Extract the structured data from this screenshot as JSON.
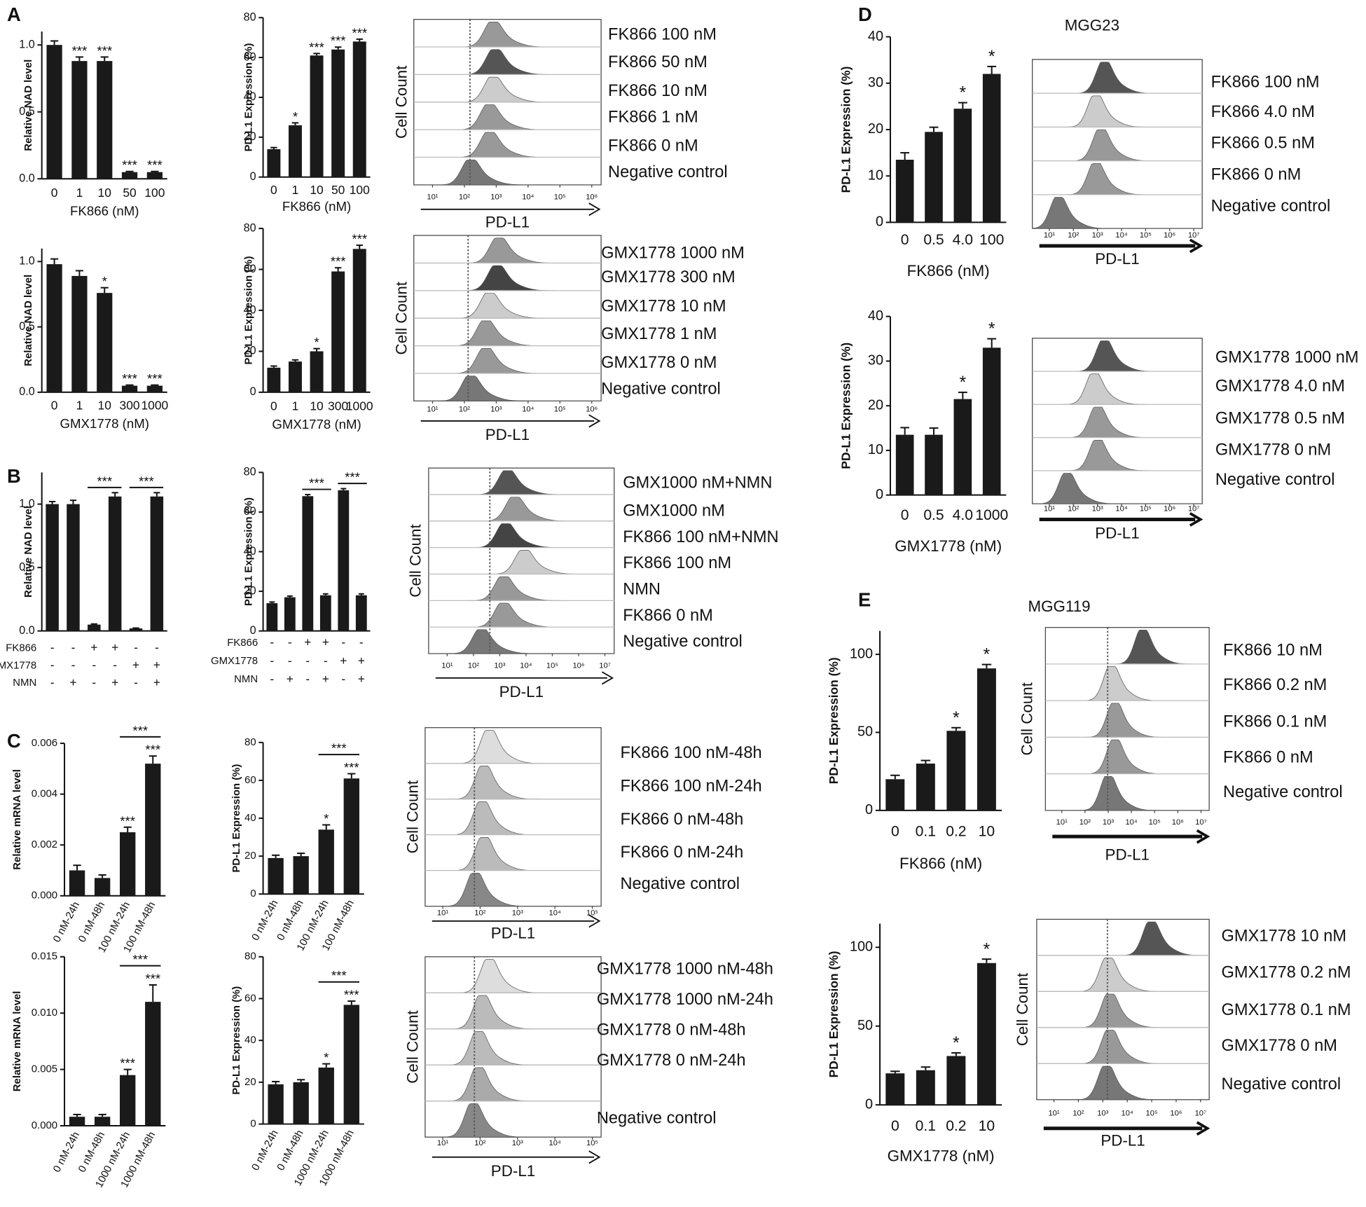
{
  "panel_labels": [
    "A",
    "B",
    "C",
    "D",
    "E"
  ],
  "cell_lines": [
    "MGG23",
    "MGG119"
  ],
  "chart_data": [
    {
      "type": "bar",
      "ylabel": "Relative NAD level",
      "xlabel": "FK866 (nM)",
      "categories": [
        "0",
        "1",
        "10",
        "50",
        "100"
      ],
      "values": [
        1.0,
        0.88,
        0.88,
        0.05,
        0.05
      ],
      "errors": [
        0.03,
        0.03,
        0.03,
        0.005,
        0.005
      ],
      "stars": [
        null,
        "***",
        "***",
        "***",
        "***"
      ],
      "ylim": [
        0,
        1.1
      ],
      "yticks": [
        {
          "value": 0,
          "label": "0.0"
        },
        0.5,
        {
          "value": 1,
          "label": "1.0"
        }
      ],
      "color": "#1a1a1a"
    },
    {
      "type": "bar",
      "ylabel": "PD-L1 Expression (%)",
      "xlabel": "FK866 (nM)",
      "categories": [
        "0",
        "1",
        "10",
        "50",
        "100"
      ],
      "values": [
        14,
        26,
        61,
        64,
        68
      ],
      "errors": [
        0.8,
        1.2,
        1,
        1.2,
        1.2
      ],
      "stars": [
        null,
        "*",
        "***",
        "***",
        "***"
      ],
      "ylim": [
        0,
        80
      ],
      "yticks": [
        0,
        20,
        40,
        60,
        80
      ],
      "color": "#1a1a1a"
    },
    {
      "type": "bar",
      "ylabel": "Relative NAD level",
      "xlabel": "GMX1778 (nM)",
      "categories": [
        "0",
        "1",
        "10",
        "300",
        "1000"
      ],
      "values": [
        0.98,
        0.89,
        0.76,
        0.05,
        0.05
      ],
      "errors": [
        0.04,
        0.04,
        0.04,
        0.005,
        0.005
      ],
      "stars": [
        null,
        null,
        "*",
        "***",
        "***"
      ],
      "ylim": [
        0,
        1.1
      ],
      "yticks": [
        {
          "value": 0,
          "label": "0.0"
        },
        0.5,
        {
          "value": 1,
          "label": "1.0"
        }
      ],
      "color": "#1a1a1a"
    },
    {
      "type": "bar",
      "ylabel": "PD-L1 Expression (%)",
      "xlabel": "GMX1778 (nM)",
      "categories": [
        "0",
        "1",
        "10",
        "300",
        "1000"
      ],
      "values": [
        12,
        15,
        20,
        59,
        70
      ],
      "errors": [
        0.8,
        0.8,
        1.3,
        1.8,
        1.8
      ],
      "stars": [
        null,
        null,
        "*",
        "***",
        "***"
      ],
      "ylim": [
        0,
        80
      ],
      "yticks": [
        0,
        20,
        40,
        60,
        80
      ],
      "color": "#1a1a1a"
    },
    {
      "type": "bar",
      "ylabel": "Relative NAD level",
      "values": [
        1.0,
        1.0,
        0.05,
        1.06,
        0.02,
        1.06
      ],
      "errors": [
        0.02,
        0.03,
        0.005,
        0.03,
        0.003,
        0.03
      ],
      "conditions": [
        {
          "name": "FK866",
          "signs": [
            "-",
            "-",
            "+",
            "+",
            "-",
            "-"
          ]
        },
        {
          "name": "GMX1778",
          "signs": [
            "-",
            "-",
            "-",
            "-",
            "+",
            "+"
          ]
        },
        {
          "name": "NMN",
          "signs": [
            "-",
            "+",
            "-",
            "+",
            "-",
            "+"
          ]
        }
      ],
      "brackets": [
        {
          "bars": [
            2,
            3
          ],
          "label": "***"
        },
        {
          "bars": [
            4,
            5
          ],
          "label": "***"
        }
      ],
      "ylim": [
        0,
        1.25
      ],
      "yticks": [
        {
          "value": 0,
          "label": "0.0"
        },
        0.5,
        {
          "value": 1,
          "label": "1.0"
        }
      ],
      "color": "#1a1a1a"
    },
    {
      "type": "bar",
      "ylabel": "PD-L1 Expression (%)",
      "values": [
        14,
        17,
        68,
        18,
        71,
        18
      ],
      "errors": [
        0.6,
        0.6,
        0.8,
        0.7,
        0.8,
        0.7
      ],
      "conditions": [
        {
          "name": "FK866",
          "signs": [
            "-",
            "-",
            "+",
            "+",
            "-",
            "-"
          ]
        },
        {
          "name": "GMX1778",
          "signs": [
            "-",
            "-",
            "-",
            "-",
            "+",
            "+"
          ]
        },
        {
          "name": "NMN",
          "signs": [
            "-",
            "+",
            "-",
            "+",
            "-",
            "+"
          ]
        }
      ],
      "brackets": [
        {
          "bars": [
            2,
            3
          ],
          "label": "***"
        },
        {
          "bars": [
            4,
            5
          ],
          "label": "***"
        }
      ],
      "ylim": [
        0,
        80
      ],
      "yticks": [
        0,
        20,
        40,
        60,
        80
      ],
      "color": "#1a1a1a"
    },
    {
      "type": "bar",
      "ylabel": "Relative mRNA level",
      "categories": [
        "0 nM-24h",
        "0 nM-48h",
        "100 nM-24h",
        "100 nM-48h"
      ],
      "values": [
        0.001,
        0.0007,
        0.0025,
        0.0052
      ],
      "errors": [
        0.0002,
        0.00012,
        0.0002,
        0.0003
      ],
      "stars": [
        null,
        null,
        "***",
        "***"
      ],
      "brackets": [
        {
          "bars": [
            2,
            3
          ],
          "label": "***"
        }
      ],
      "ylim": [
        0,
        0.006
      ],
      "yticks": [
        {
          "value": 0,
          "label": "0.000"
        },
        0.002,
        0.004,
        0.006
      ],
      "color": "#1a1a1a"
    },
    {
      "type": "bar",
      "ylabel": "PD-L1 Expression (%)",
      "categories": [
        "0 nM-24h",
        "0 nM-48h",
        "100 nM-24h",
        "100 nM-48h"
      ],
      "values": [
        19,
        20,
        34,
        61
      ],
      "errors": [
        1.5,
        1.5,
        2.5,
        2.5
      ],
      "stars": [
        null,
        null,
        "*",
        "***"
      ],
      "brackets": [
        {
          "bars": [
            2,
            3
          ],
          "label": "***"
        }
      ],
      "ylim": [
        0,
        80
      ],
      "yticks": [
        0,
        20,
        40,
        60,
        80
      ],
      "color": "#1a1a1a"
    },
    {
      "type": "bar",
      "ylabel": "Relative mRNA level",
      "categories": [
        "0 nM-24h",
        "0 nM-48h",
        "1000 nM-24h",
        "1000 nM-48h"
      ],
      "values": [
        0.0008,
        0.0008,
        0.0045,
        0.011
      ],
      "errors": [
        0.0002,
        0.0002,
        0.0005,
        0.0015
      ],
      "stars": [
        null,
        null,
        "***",
        "***"
      ],
      "brackets": [
        {
          "bars": [
            2,
            3
          ],
          "label": "***"
        }
      ],
      "ylim": [
        0,
        0.015
      ],
      "yticks": [
        {
          "value": 0,
          "label": "0.000"
        },
        0.005,
        {
          "value": 0.01,
          "label": "0.010"
        },
        0.015
      ],
      "color": "#1a1a1a"
    },
    {
      "type": "bar",
      "ylabel": "PD-L1 Expression (%)",
      "categories": [
        "0 nM-24h",
        "0 nM-48h",
        "1000 nM-24h",
        "1000 nM-48h"
      ],
      "values": [
        19,
        20,
        27,
        57
      ],
      "errors": [
        1.3,
        1.2,
        1.8,
        1.8
      ],
      "stars": [
        null,
        null,
        "*",
        "***"
      ],
      "brackets": [
        {
          "bars": [
            2,
            3
          ],
          "label": "***"
        }
      ],
      "ylim": [
        0,
        80
      ],
      "yticks": [
        0,
        20,
        40,
        60,
        80
      ],
      "color": "#1a1a1a"
    },
    {
      "type": "bar",
      "ylabel": "PD-L1 Expression (%)",
      "xlabel": "FK866 (nM)",
      "categories": [
        "0",
        "0.5",
        "4.0",
        "100"
      ],
      "values": [
        13.5,
        19.5,
        24.5,
        32
      ],
      "errors": [
        1.5,
        1,
        1.3,
        1.6
      ],
      "stars": [
        null,
        null,
        "*",
        "*"
      ],
      "ylim": [
        0,
        40
      ],
      "yticks": [
        0,
        10,
        20,
        30,
        40
      ],
      "color": "#1a1a1a"
    },
    {
      "type": "bar",
      "ylabel": "PD-L1 Expression (%)",
      "xlabel": "GMX1778 (nM)",
      "categories": [
        "0",
        "0.5",
        "4.0",
        "1000"
      ],
      "values": [
        13.5,
        13.5,
        21.5,
        33
      ],
      "errors": [
        1.6,
        1.5,
        1.5,
        2
      ],
      "stars": [
        null,
        null,
        "*",
        "*"
      ],
      "ylim": [
        0,
        40
      ],
      "yticks": [
        0,
        10,
        20,
        30,
        40
      ],
      "color": "#1a1a1a"
    },
    {
      "type": "bar",
      "ylabel": "PD-L1 Expression (%)",
      "xlabel": "FK866 (nM)",
      "categories": [
        "0",
        "0.1",
        "0.2",
        "10"
      ],
      "values": [
        20,
        30,
        51,
        91
      ],
      "errors": [
        2.5,
        2,
        2,
        2.5
      ],
      "stars": [
        null,
        null,
        "*",
        "*"
      ],
      "ylim": [
        0,
        115
      ],
      "yticks": [
        0,
        50,
        100
      ],
      "color": "#1a1a1a"
    },
    {
      "type": "bar",
      "ylabel": "PD-L1 Expression (%)",
      "xlabel": "GMX1778 (nM)",
      "categories": [
        "0",
        "0.1",
        "0.2",
        "10"
      ],
      "values": [
        20,
        22,
        31,
        90
      ],
      "errors": [
        1.3,
        2,
        2,
        2.5
      ],
      "stars": [
        null,
        null,
        "*",
        "*"
      ],
      "ylim": [
        0,
        115
      ],
      "yticks": [
        0,
        50,
        100
      ],
      "color": "#1a1a1a"
    }
  ],
  "histograms": [
    {
      "rows": [
        "FK866 100 nM",
        "FK866 50 nM",
        "FK866 10 nM",
        "FK866 1 nM",
        "FK866 0 nM",
        "Negative control"
      ],
      "ticks": [
        "10¹",
        "10²",
        "10³",
        "10⁴",
        "10⁵",
        "10⁶"
      ],
      "xlabel": "PD-L1",
      "ylabel": "Cell Count"
    },
    {
      "rows": [
        "GMX1778 1000 nM",
        "GMX1778 300 nM",
        "GMX1778 10 nM",
        "GMX1778 1 nM",
        "GMX1778 0 nM",
        "Negative control"
      ],
      "ticks": [
        "10¹",
        "10²",
        "10³",
        "10⁴",
        "10⁵",
        "10⁶"
      ],
      "xlabel": "PD-L1",
      "ylabel": "Cell Count"
    },
    {
      "rows": [
        "GMX1000 nM+NMN",
        "GMX1000 nM",
        "FK866 100 nM+NMN",
        "FK866 100 nM",
        "NMN",
        "FK866 0 nM",
        "Negative control"
      ],
      "ticks": [
        "10¹",
        "10²",
        "10³",
        "10⁴",
        "10⁵",
        "10⁶",
        "10⁷"
      ],
      "xlabel": "PD-L1",
      "ylabel": "Cell Count"
    },
    {
      "rows": [
        "FK866 100 nM-48h",
        "FK866 100 nM-24h",
        "FK866 0 nM-48h",
        "FK866 0 nM-24h",
        "Negative control"
      ],
      "ticks": [
        "10¹",
        "10²",
        "10³",
        "10⁴",
        "10⁵"
      ],
      "xlabel": "PD-L1",
      "ylabel": "Cell Count"
    },
    {
      "rows": [
        "GMX1778 1000 nM-48h",
        "GMX1778 1000 nM-24h",
        "GMX1778 0 nM-48h",
        "GMX1778 0 nM-24h",
        "Negative control"
      ],
      "ticks": [
        "10¹",
        "10²",
        "10³",
        "10⁴",
        "10⁵"
      ],
      "xlabel": "PD-L1",
      "ylabel": "Cell Count"
    },
    {
      "rows": [
        "FK866 100 nM",
        "FK866 4.0 nM",
        "FK866 0.5 nM",
        "FK866 0 nM",
        "Negative control"
      ],
      "ticks": [
        "10¹",
        "10²",
        "10³",
        "10⁴",
        "10⁵",
        "10⁶",
        "10⁷"
      ],
      "xlabel": "PD-L1"
    },
    {
      "rows": [
        "GMX1778 1000 nM",
        "GMX1778 4.0 nM",
        "GMX1778 0.5 nM",
        "GMX1778 0 nM",
        "Negative control"
      ],
      "ticks": [
        "10¹",
        "10²",
        "10³",
        "10⁴",
        "10⁵",
        "10⁶",
        "10⁷"
      ],
      "xlabel": "PD-L1"
    },
    {
      "rows": [
        "FK866 10 nM",
        "FK866 0.2 nM",
        "FK866 0.1 nM",
        "FK866 0 nM",
        "Negative control"
      ],
      "ticks": [
        "10¹",
        "10²",
        "10³",
        "10⁴",
        "10⁵",
        "10⁶",
        "10⁷"
      ],
      "xlabel": "PD-L1",
      "ylabel": "Cell Count"
    },
    {
      "rows": [
        "GMX1778 10 nM",
        "GMX1778 0.2 nM",
        "GMX1778 0.1 nM",
        "GMX1778 0 nM",
        "Negative control"
      ],
      "ticks": [
        "10¹",
        "10²",
        "10³",
        "10⁴",
        "10⁵",
        "10⁶",
        "10⁷"
      ],
      "xlabel": "PD-L1",
      "ylabel": "Cell Count"
    }
  ]
}
